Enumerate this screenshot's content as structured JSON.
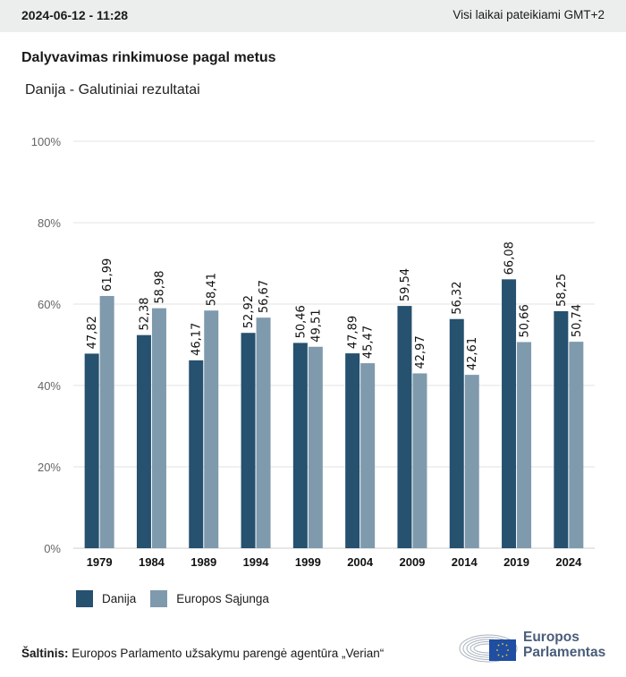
{
  "header": {
    "datetime": "2024-06-12 - 11:28",
    "timezone_note": "Visi laikai pateikiami GMT+2"
  },
  "title": "Dalyvavimas rinkimuose pagal metus",
  "subtitle": "Danija - Galutiniai rezultatai",
  "colors": {
    "danija": "#26516f",
    "eu": "#7f9aad",
    "grid": "#e3e3e3",
    "axis_text": "#666666"
  },
  "chart_data": {
    "type": "bar",
    "title": "Dalyvavimas rinkimuose pagal metus",
    "subtitle": "Danija - Galutiniai rezultatai",
    "xlabel": "",
    "ylabel": "",
    "ylim": [
      0,
      100
    ],
    "yticks": [
      "0%",
      "20%",
      "40%",
      "60%",
      "80%",
      "100%"
    ],
    "ytick_values": [
      0,
      20,
      40,
      60,
      80,
      100
    ],
    "grid": true,
    "legend_position": "bottom-left",
    "categories": [
      "1979",
      "1984",
      "1989",
      "1994",
      "1999",
      "2004",
      "2009",
      "2014",
      "2019",
      "2024"
    ],
    "series": [
      {
        "name": "Danija",
        "values": [
          47.82,
          52.38,
          46.17,
          52.92,
          50.46,
          47.89,
          59.54,
          56.32,
          66.08,
          58.25
        ],
        "labels": [
          "47,82",
          "52,38",
          "46,17",
          "52,92",
          "50,46",
          "47,89",
          "59,54",
          "56,32",
          "66,08",
          "58,25"
        ]
      },
      {
        "name": "Europos Sąjunga",
        "values": [
          61.99,
          58.98,
          58.41,
          56.67,
          49.51,
          45.47,
          42.97,
          42.61,
          50.66,
          50.74
        ],
        "labels": [
          "61,99",
          "58,98",
          "58,41",
          "56,67",
          "49,51",
          "45,47",
          "42,97",
          "42,61",
          "50,66",
          "50,74"
        ]
      }
    ]
  },
  "legend": {
    "items": [
      "Danija",
      "Europos Sąjunga"
    ]
  },
  "footer": {
    "source_label": "Šaltinis:",
    "source_text": "Europos Parlamento užsakymu parengė agentūra „Verian“",
    "logo_line1": "Europos",
    "logo_line2": "Parlamentas"
  }
}
